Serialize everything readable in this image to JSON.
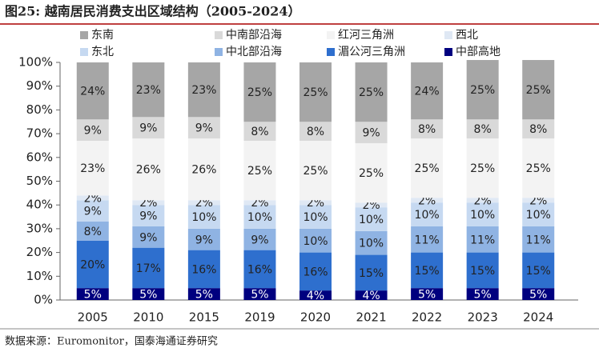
{
  "chart_data": {
    "type": "stacked_bar",
    "title": "图25:  越南居民消费支出区域结构（2005-2024）",
    "source": "数据来源：Euromonitor，国泰海通证券研究",
    "categories": [
      "2005",
      "2010",
      "2015",
      "2019",
      "2020",
      "2021",
      "2022",
      "2023",
      "2024"
    ],
    "ylim": [
      0,
      100
    ],
    "yticks": [
      {
        "value": 0,
        "label": "0%"
      },
      {
        "value": 10,
        "label": "10%"
      },
      {
        "value": 20,
        "label": "20%"
      },
      {
        "value": 30,
        "label": "30%"
      },
      {
        "value": 40,
        "label": "40%"
      },
      {
        "value": 50,
        "label": "50%"
      },
      {
        "value": 60,
        "label": "60%"
      },
      {
        "value": 70,
        "label": "70%"
      },
      {
        "value": 80,
        "label": "80%"
      },
      {
        "value": 90,
        "label": "90%"
      },
      {
        "value": 100,
        "label": "100%"
      }
    ],
    "series": [
      {
        "name": "中部高地",
        "color": "#00007f",
        "values": [
          5,
          5,
          5,
          5,
          4,
          4,
          5,
          5,
          5
        ],
        "value_labels": [
          "5%",
          "5%",
          "5%",
          "5%",
          "4%",
          "4%",
          "5%",
          "5%",
          "5%"
        ]
      },
      {
        "name": "湄公河三角洲",
        "color": "#2e6fce",
        "values": [
          20,
          17,
          16,
          16,
          16,
          15,
          15,
          15,
          15
        ],
        "value_labels": [
          "20%",
          "17%",
          "16%",
          "16%",
          "16%",
          "15%",
          "15%",
          "15%",
          "15%"
        ]
      },
      {
        "name": "中北部沿海",
        "color": "#8fb3e3",
        "values": [
          8,
          9,
          9,
          9,
          10,
          10,
          11,
          11,
          11
        ],
        "value_labels": [
          "8%",
          "9%",
          "9%",
          "9%",
          "10%",
          "10%",
          "11%",
          "11%",
          "11%"
        ]
      },
      {
        "name": "东北",
        "color": "#c6d9f1",
        "values": [
          9,
          9,
          10,
          10,
          10,
          10,
          10,
          10,
          10
        ],
        "value_labels": [
          "9%",
          "9%",
          "10%",
          "10%",
          "10%",
          "10%",
          "10%",
          "10%",
          "10%"
        ]
      },
      {
        "name": "西北",
        "color": "#dfe8f4",
        "values": [
          2,
          2,
          2,
          2,
          2,
          2,
          2,
          2,
          2
        ],
        "value_labels": [
          "2%",
          "2%",
          "2%",
          "2%",
          "2%",
          "2%",
          "2%",
          "2%",
          "2%"
        ]
      },
      {
        "name": "红河三角洲",
        "color": "#f3f3f3",
        "values": [
          23,
          26,
          26,
          25,
          25,
          25,
          25,
          25,
          25
        ],
        "value_labels": [
          "23%",
          "26%",
          "26%",
          "25%",
          "25%",
          "25%",
          "25%",
          "25%",
          "25%"
        ]
      },
      {
        "name": "中南部沿海",
        "color": "#d9d9d9",
        "values": [
          9,
          9,
          9,
          8,
          8,
          9,
          8,
          8,
          8
        ],
        "value_labels": [
          "9%",
          "9%",
          "9%",
          "8%",
          "8%",
          "9%",
          "8%",
          "8%",
          "8%"
        ]
      },
      {
        "name": "东南",
        "color": "#a6a6a6",
        "values": [
          24,
          23,
          23,
          25,
          25,
          25,
          24,
          25,
          25
        ],
        "value_labels": [
          "24%",
          "23%",
          "23%",
          "25%",
          "25%",
          "25%",
          "24%",
          "25%",
          "25%"
        ]
      }
    ]
  }
}
